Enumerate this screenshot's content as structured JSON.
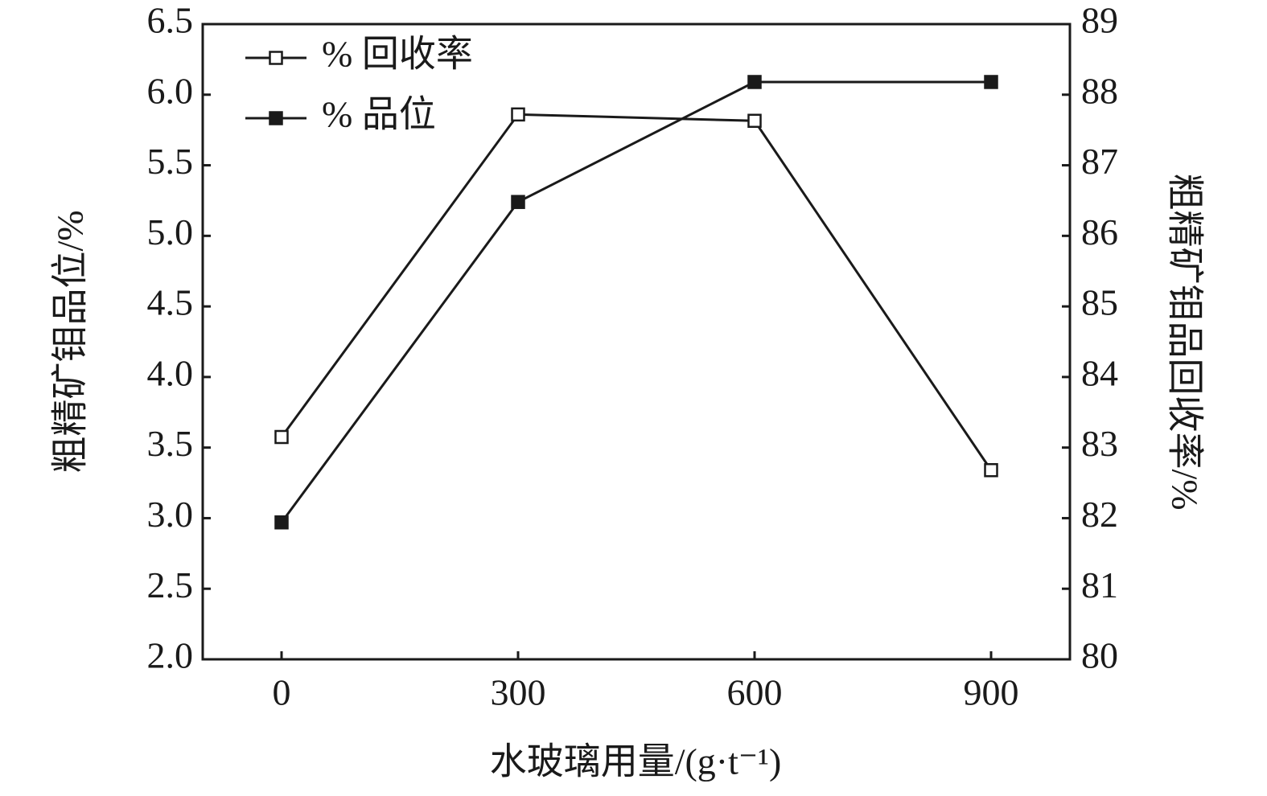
{
  "chart_data": {
    "type": "line",
    "x_label": "水玻璃用量/(g·t⁻¹)",
    "y_label": "粗精矿钼品位/%",
    "y2_label": "粗精矿钼品回收率/%",
    "x": [
      0,
      300,
      600,
      900
    ],
    "xlim": [
      -100,
      1000
    ],
    "xticks": [
      0,
      300,
      600,
      900
    ],
    "ylim": [
      2.0,
      6.5
    ],
    "yticks": [
      {
        "value": 2.0,
        "label": "2.0"
      },
      2.5,
      {
        "value": 3.0,
        "label": "3.0"
      },
      3.5,
      {
        "value": 4.0,
        "label": "4.0"
      },
      4.5,
      {
        "value": 5.0,
        "label": "5.0"
      },
      5.5,
      {
        "value": 6.0,
        "label": "6.0"
      },
      6.5
    ],
    "y2lim": [
      80,
      89
    ],
    "y2ticks": [
      80,
      81,
      82,
      83,
      84,
      85,
      86,
      87,
      88,
      89
    ],
    "legend": "upper left",
    "series": [
      {
        "name": "% 回收率",
        "color": "#1a1a1a",
        "marker": "open-square",
        "axis": "y2",
        "values": [
          83.15,
          87.72,
          87.63,
          82.68
        ]
      },
      {
        "name": "% 品位",
        "color": "#1a1a1a",
        "marker": "filled-square",
        "values": [
          2.97,
          5.24,
          6.09,
          6.09
        ]
      }
    ]
  }
}
